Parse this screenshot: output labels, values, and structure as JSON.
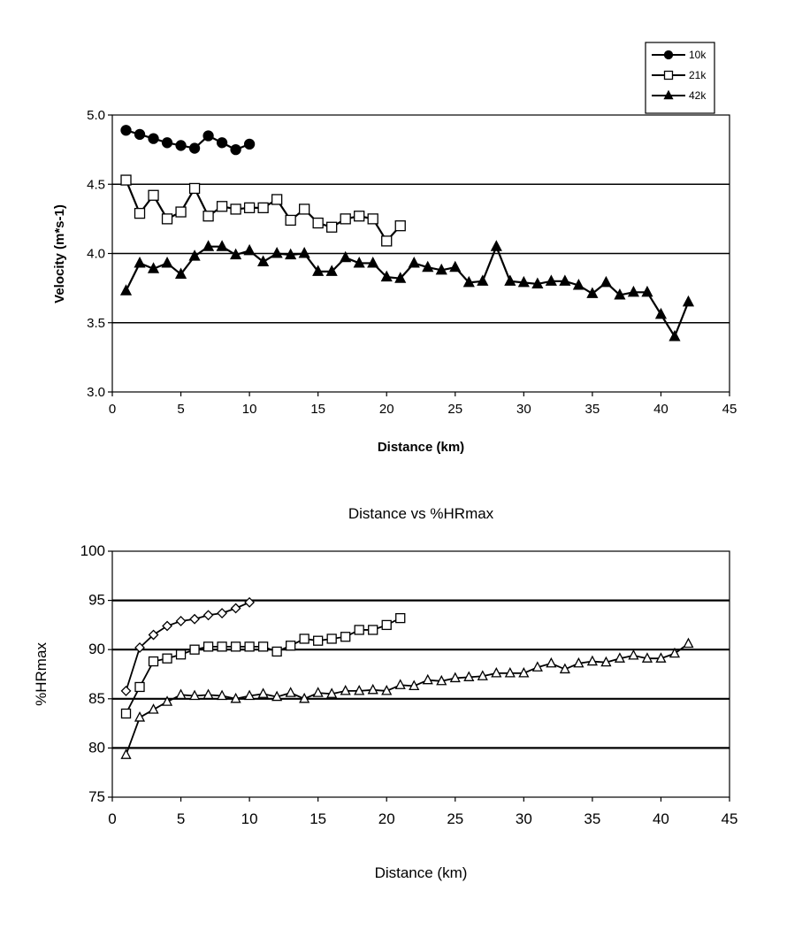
{
  "chart_data": [
    {
      "type": "line",
      "title": "",
      "xlabel": "Distance (km)",
      "ylabel": "Velocity (m*s-1)",
      "xlim": [
        0,
        45
      ],
      "ylim": [
        3.0,
        5.0
      ],
      "xticks": [
        "0",
        "5",
        "10",
        "15",
        "20",
        "25",
        "30",
        "35",
        "40",
        "45"
      ],
      "yticks": [
        "3.0",
        "3.5",
        "4.0",
        "4.5",
        "5.0"
      ],
      "grid": "horizontal",
      "legend": "top-right",
      "series": [
        {
          "name": "10k",
          "marker": "filled-circle",
          "x": [
            1,
            2,
            3,
            4,
            5,
            6,
            7,
            8,
            9,
            10
          ],
          "values": [
            4.89,
            4.86,
            4.83,
            4.8,
            4.78,
            4.76,
            4.85,
            4.8,
            4.75,
            4.79
          ]
        },
        {
          "name": "21k",
          "marker": "open-square",
          "x": [
            1,
            2,
            3,
            4,
            5,
            6,
            7,
            8,
            9,
            10,
            11,
            12,
            13,
            14,
            15,
            16,
            17,
            18,
            19,
            20,
            21
          ],
          "values": [
            4.53,
            4.29,
            4.42,
            4.25,
            4.3,
            4.47,
            4.27,
            4.34,
            4.32,
            4.33,
            4.33,
            4.39,
            4.24,
            4.32,
            4.22,
            4.19,
            4.25,
            4.27,
            4.25,
            4.09,
            4.2
          ]
        },
        {
          "name": "42k",
          "marker": "filled-triangle",
          "x": [
            1,
            2,
            3,
            4,
            5,
            6,
            7,
            8,
            9,
            10,
            11,
            12,
            13,
            14,
            15,
            16,
            17,
            18,
            19,
            20,
            21,
            22,
            23,
            24,
            25,
            26,
            27,
            28,
            29,
            30,
            31,
            32,
            33,
            34,
            35,
            36,
            37,
            38,
            39,
            40,
            41,
            42
          ],
          "values": [
            3.73,
            3.93,
            3.89,
            3.93,
            3.85,
            3.98,
            4.05,
            4.05,
            3.99,
            4.02,
            3.94,
            4.0,
            3.99,
            4.0,
            3.87,
            3.87,
            3.97,
            3.93,
            3.93,
            3.83,
            3.82,
            3.93,
            3.9,
            3.88,
            3.9,
            3.79,
            3.8,
            4.05,
            3.8,
            3.79,
            3.78,
            3.8,
            3.8,
            3.77,
            3.71,
            3.79,
            3.7,
            3.72,
            3.72,
            3.56,
            3.4,
            3.65
          ]
        }
      ]
    },
    {
      "type": "line",
      "title": "Distance vs %HRmax",
      "xlabel": "Distance (km)",
      "ylabel": "%HRmax",
      "xlim": [
        0,
        45
      ],
      "ylim": [
        75,
        100
      ],
      "xticks": [
        "0",
        "5",
        "10",
        "15",
        "20",
        "25",
        "30",
        "35",
        "40",
        "45"
      ],
      "yticks": [
        "75",
        "80",
        "85",
        "90",
        "95",
        "100"
      ],
      "grid": "horizontal",
      "legend": "none",
      "series": [
        {
          "name": "10k",
          "marker": "open-diamond",
          "x": [
            1,
            2,
            3,
            4,
            5,
            6,
            7,
            8,
            9,
            10
          ],
          "values": [
            85.8,
            90.2,
            91.5,
            92.4,
            92.9,
            93.1,
            93.5,
            93.7,
            94.2,
            94.8
          ]
        },
        {
          "name": "21k",
          "marker": "open-square",
          "x": [
            1,
            2,
            3,
            4,
            5,
            6,
            7,
            8,
            9,
            10,
            11,
            12,
            13,
            14,
            15,
            16,
            17,
            18,
            19,
            20,
            21
          ],
          "values": [
            83.5,
            86.2,
            88.8,
            89.1,
            89.5,
            90.0,
            90.3,
            90.3,
            90.3,
            90.3,
            90.3,
            89.8,
            90.4,
            91.1,
            90.9,
            91.1,
            91.3,
            92.0,
            92.0,
            92.5,
            93.2
          ]
        },
        {
          "name": "42k",
          "marker": "open-triangle",
          "x": [
            1,
            2,
            3,
            4,
            5,
            6,
            7,
            8,
            9,
            10,
            11,
            12,
            13,
            14,
            15,
            16,
            17,
            18,
            19,
            20,
            21,
            22,
            23,
            24,
            25,
            26,
            27,
            28,
            29,
            30,
            31,
            32,
            33,
            34,
            35,
            36,
            37,
            38,
            39,
            40,
            41,
            42
          ],
          "values": [
            79.3,
            83.1,
            83.9,
            84.7,
            85.4,
            85.3,
            85.4,
            85.3,
            85.0,
            85.3,
            85.5,
            85.2,
            85.6,
            85.0,
            85.6,
            85.5,
            85.8,
            85.8,
            85.9,
            85.8,
            86.4,
            86.3,
            86.9,
            86.8,
            87.1,
            87.2,
            87.3,
            87.6,
            87.6,
            87.6,
            88.2,
            88.6,
            88.0,
            88.6,
            88.8,
            88.7,
            89.1,
            89.4,
            89.1,
            89.1,
            89.6,
            90.6
          ]
        }
      ]
    }
  ]
}
